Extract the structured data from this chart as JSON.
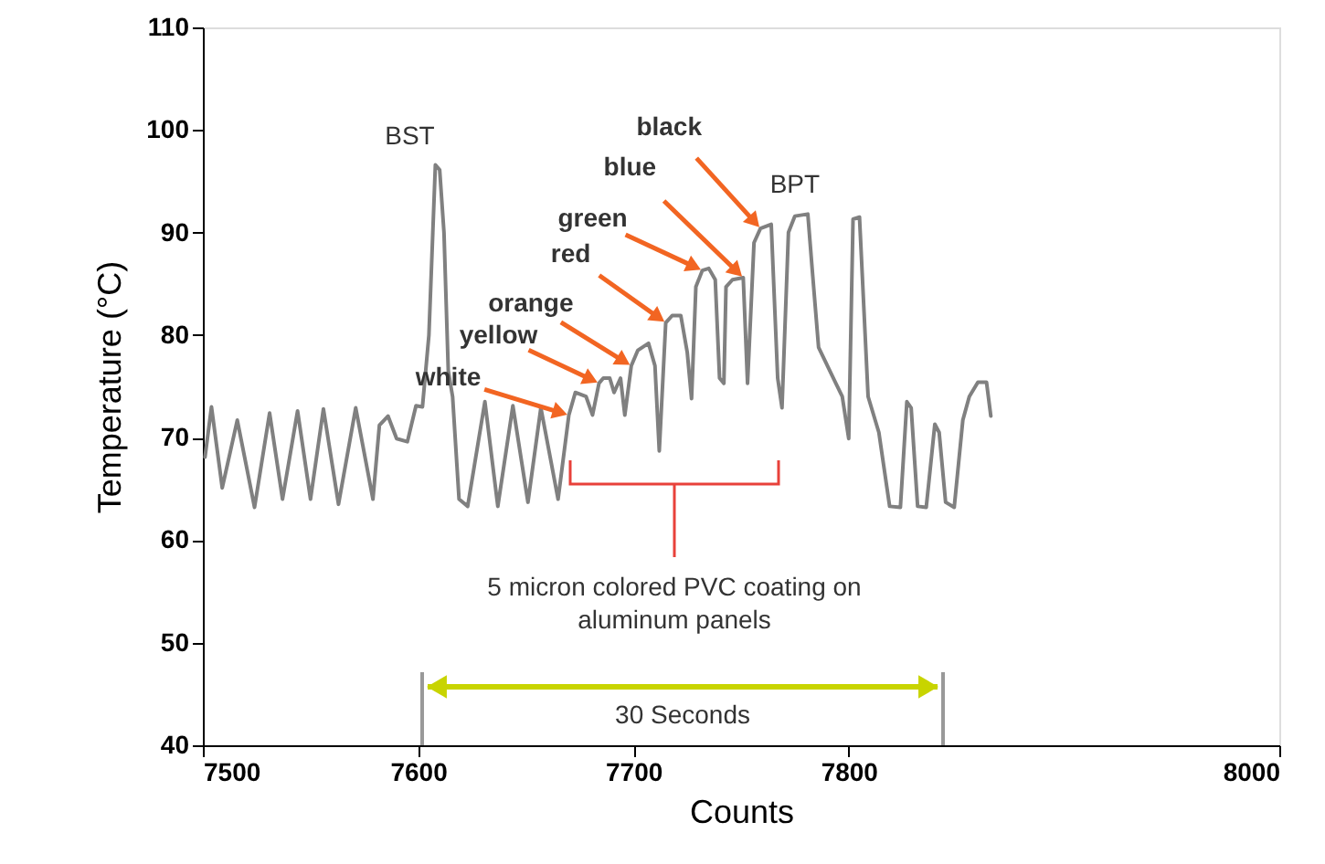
{
  "chart_data": {
    "type": "line",
    "xlabel": "Counts",
    "ylabel": "Temperature (°C)",
    "xlim": [
      7500,
      8000
    ],
    "xticks": [
      7500,
      7600,
      7700,
      7800,
      8000
    ],
    "ylim": [
      40,
      110
    ],
    "yticks": [
      40,
      50,
      60,
      70,
      80,
      90,
      100,
      110
    ],
    "grid": false,
    "marker": "none",
    "line_style": "solid",
    "series": [
      {
        "color": "#808080",
        "x": [
          7501,
          7504,
          7509,
          7516,
          7524,
          7531,
          7537,
          7544,
          7550,
          7556,
          7563,
          7571,
          7579,
          7582,
          7586,
          7590,
          7595,
          7599,
          7602,
          7605,
          7608,
          7610,
          7612,
          7614,
          7616,
          7619,
          7623,
          7631,
          7637,
          7644,
          7651,
          7657,
          7665,
          7670,
          7673,
          7678,
          7681,
          7684,
          7686,
          7689,
          7691,
          7694,
          7696,
          7699,
          7702,
          7707,
          7710,
          7712,
          7715,
          7718,
          7722,
          7725,
          7727,
          7729,
          7732,
          7735,
          7738,
          7740,
          7742,
          7743,
          7746,
          7751,
          7753,
          7756,
          7759,
          7764,
          7767,
          7769,
          7772,
          7775,
          7781,
          7783,
          7786,
          7794,
          7797,
          7800,
          7802,
          7805,
          7809,
          7814,
          7819,
          7824,
          7827,
          7829,
          7832,
          7836,
          7840,
          7842,
          7845,
          7849,
          7853,
          7856,
          7860,
          7864,
          7866
        ],
        "values": [
          68.1,
          73,
          65.1,
          71.7,
          63.2,
          72.4,
          64,
          72.6,
          64,
          72.8,
          63.5,
          72.9,
          64,
          71.2,
          72.1,
          69.9,
          69.6,
          73.1,
          73,
          80,
          96.6,
          96.1,
          90,
          76.5,
          74,
          64,
          63.3,
          73.5,
          63.3,
          73.1,
          63.7,
          72.9,
          64,
          72.2,
          74.4,
          74,
          72.2,
          75.3,
          75.8,
          75.8,
          74.4,
          75.8,
          72.2,
          77,
          78.5,
          79.2,
          77,
          68.7,
          81.2,
          81.9,
          81.9,
          78.3,
          73.8,
          84.7,
          86.3,
          86.5,
          85.4,
          75.8,
          75.3,
          84.7,
          85.4,
          85.6,
          75.3,
          89,
          90.4,
          90.8,
          75.8,
          72.9,
          90,
          91.6,
          91.8,
          86.5,
          78.8,
          75.3,
          74,
          69.9,
          91.3,
          91.5,
          74,
          70.5,
          63.3,
          63.2,
          73.5,
          72.9,
          63.3,
          63.2,
          71.3,
          70.5,
          63.7,
          63.2,
          71.7,
          74,
          75.4,
          75.4,
          72.1
        ]
      }
    ],
    "annotations": [
      {
        "text": "BST",
        "x": 7608,
        "y": 96.6
      },
      {
        "text": "BPT",
        "x": 7775,
        "y": 91.6
      },
      {
        "text": "white",
        "x": 7670,
        "y": 72.2
      },
      {
        "text": "yellow",
        "x": 7684,
        "y": 75.3
      },
      {
        "text": "orange",
        "x": 7699,
        "y": 77
      },
      {
        "text": "red",
        "x": 7715,
        "y": 81.2
      },
      {
        "text": "green",
        "x": 7732,
        "y": 86.3
      },
      {
        "text": "blue",
        "x": 7751,
        "y": 85.6
      },
      {
        "text": "black",
        "x": 7759,
        "y": 90.4
      },
      "5 micron colored PVC coating on aluminum panels",
      "30 Seconds"
    ]
  }
}
